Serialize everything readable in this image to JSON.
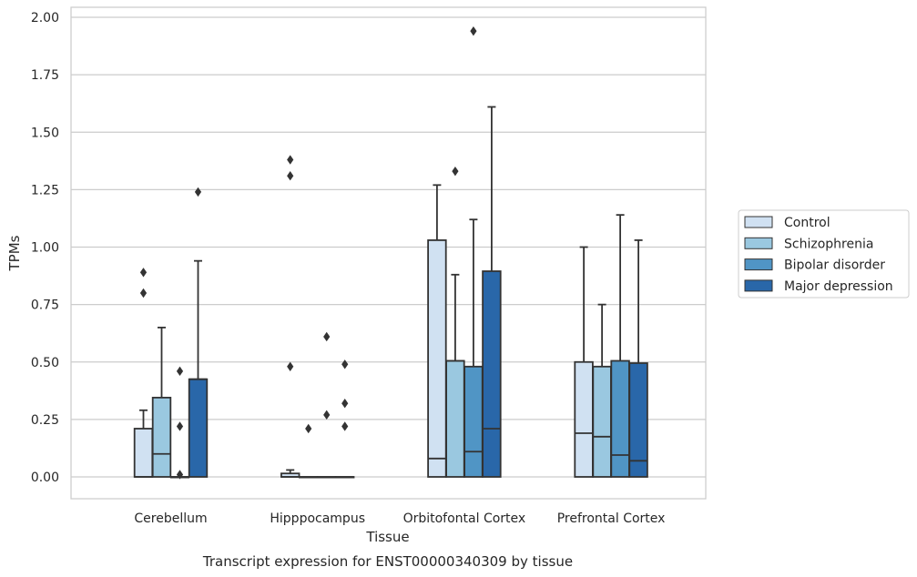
{
  "chart_data": {
    "type": "box",
    "title": "",
    "caption": "Transcript expression for ENST00000340309 by tissue",
    "xlabel": "Tissue",
    "ylabel": "TPMs",
    "ylim": [
      -0.09,
      2.04
    ],
    "yticks": [
      "0.00",
      "0.25",
      "0.50",
      "0.75",
      "1.00",
      "1.25",
      "1.50",
      "1.75",
      "2.00"
    ],
    "ytick_values": [
      0,
      0.25,
      0.5,
      0.75,
      1.0,
      1.25,
      1.5,
      1.75,
      2.0
    ],
    "grid": "horizontal",
    "legend_position": "right",
    "categories": [
      "Cerebellum",
      "Hipppocampus",
      "Orbitofontal Cortex",
      "Prefrontal Cortex"
    ],
    "series": [
      {
        "name": "Control",
        "color": "#d0e1f2",
        "boxes": [
          {
            "q1": 0,
            "median": 0,
            "q3": 0.21,
            "whisker_low": 0,
            "whisker_high": 0.29,
            "outliers": [
              0.89,
              0.8
            ]
          },
          {
            "q1": 0,
            "median": 0,
            "q3": 0.015,
            "whisker_low": 0,
            "whisker_high": 0.03,
            "outliers": [
              1.38,
              1.31,
              0.48
            ]
          },
          {
            "q1": 0,
            "median": 0.08,
            "q3": 1.03,
            "whisker_low": 0,
            "whisker_high": 1.27,
            "outliers": []
          },
          {
            "q1": 0,
            "median": 0.19,
            "q3": 0.5,
            "whisker_low": 0,
            "whisker_high": 1.0,
            "outliers": []
          }
        ]
      },
      {
        "name": "Schizophrenia",
        "color": "#9ac8e0",
        "boxes": [
          {
            "q1": 0,
            "median": 0.1,
            "q3": 0.345,
            "whisker_low": 0,
            "whisker_high": 0.65,
            "outliers": []
          },
          {
            "q1": 0,
            "median": 0,
            "q3": 0,
            "whisker_low": 0,
            "whisker_high": 0,
            "outliers": [
              0.21
            ]
          },
          {
            "q1": 0,
            "median": 0.505,
            "q3": 0.505,
            "whisker_low": 0,
            "whisker_high": 0.88,
            "outliers": [
              1.33
            ]
          },
          {
            "q1": 0,
            "median": 0.175,
            "q3": 0.48,
            "whisker_low": 0,
            "whisker_high": 0.75,
            "outliers": []
          }
        ]
      },
      {
        "name": "Bipolar disorder",
        "color": "#5095c5",
        "boxes": [
          {
            "q1": 0,
            "median": 0,
            "q3": 0,
            "whisker_low": 0,
            "whisker_high": 0,
            "outliers": [
              0.46,
              0.22,
              0.01
            ]
          },
          {
            "q1": 0,
            "median": 0,
            "q3": 0,
            "whisker_low": 0,
            "whisker_high": 0,
            "outliers": [
              0.61,
              0.27
            ]
          },
          {
            "q1": 0,
            "median": 0.11,
            "q3": 0.48,
            "whisker_low": 0,
            "whisker_high": 1.12,
            "outliers": [
              1.94
            ]
          },
          {
            "q1": 0,
            "median": 0.095,
            "q3": 0.505,
            "whisker_low": 0,
            "whisker_high": 1.14,
            "outliers": []
          }
        ]
      },
      {
        "name": "Major depression",
        "color": "#2967a9",
        "boxes": [
          {
            "q1": 0,
            "median": 0.425,
            "q3": 0.425,
            "whisker_low": 0,
            "whisker_high": 0.94,
            "outliers": [
              1.24
            ]
          },
          {
            "q1": 0,
            "median": 0,
            "q3": 0,
            "whisker_low": 0,
            "whisker_high": 0,
            "outliers": [
              0.49,
              0.32,
              0.22
            ]
          },
          {
            "q1": 0,
            "median": 0.21,
            "q3": 0.895,
            "whisker_low": 0,
            "whisker_high": 1.61,
            "outliers": []
          },
          {
            "q1": 0,
            "median": 0.07,
            "q3": 0.495,
            "whisker_low": 0,
            "whisker_high": 1.03,
            "outliers": []
          }
        ]
      }
    ]
  }
}
